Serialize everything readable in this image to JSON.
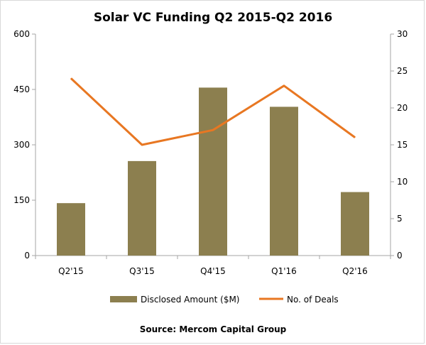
{
  "chart_data": {
    "type": "bar+line",
    "title": "Solar VC Funding Q2 2015-Q2 2016",
    "categories": [
      "Q2'15",
      "Q3'15",
      "Q4'15",
      "Q1'16",
      "Q2'16"
    ],
    "series": [
      {
        "name": "Disclosed Amount ($M)",
        "type": "bar",
        "axis": "left",
        "values": [
          142,
          256,
          455,
          403,
          172
        ],
        "color": "#8c7f4f"
      },
      {
        "name": "No. of Deals",
        "type": "line",
        "axis": "right",
        "values": [
          24,
          15,
          17,
          23,
          16
        ],
        "color": "#e87722"
      }
    ],
    "y_left": {
      "ylim": [
        0,
        600
      ],
      "ticks": [
        "0",
        "150",
        "300",
        "450",
        "600"
      ]
    },
    "y_right": {
      "ylim": [
        0,
        30
      ],
      "ticks": [
        "0",
        "5",
        "10",
        "15",
        "20",
        "25",
        "30"
      ]
    },
    "legend": {
      "position": "bottom"
    },
    "grid": false,
    "source": "Source: Mercom Capital Group"
  }
}
